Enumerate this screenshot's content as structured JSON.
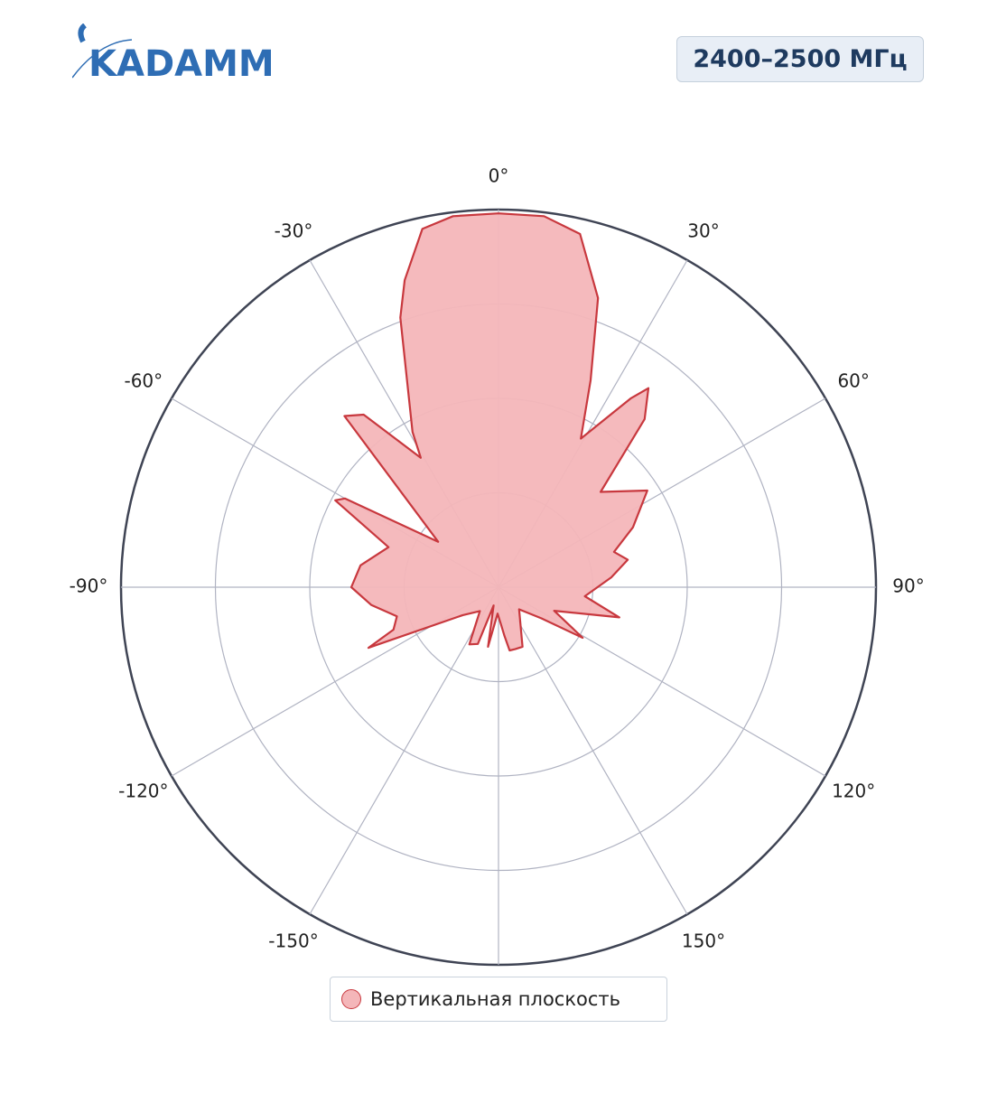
{
  "header": {
    "logo": "KADAMM",
    "badge": "2400–2500 МГц"
  },
  "chart_data": {
    "type": "polar",
    "rlim": [
      0,
      1
    ],
    "rticks": [
      0.25,
      0.5,
      0.75,
      1
    ],
    "thetaticks": [
      {
        "value": 0,
        "label": "0°"
      },
      {
        "value": 30,
        "label": "30°"
      },
      {
        "value": 60,
        "label": "60°"
      },
      {
        "value": 90,
        "label": "90°"
      },
      {
        "value": 120,
        "label": "120°"
      },
      {
        "value": 150,
        "label": "150°"
      },
      {
        "value": 180,
        "label": null
      },
      {
        "value": -150,
        "label": "-150°"
      },
      {
        "value": -120,
        "label": "-120°"
      },
      {
        "value": -90,
        "label": "-90°"
      },
      {
        "value": -60,
        "label": "-60°"
      },
      {
        "value": -30,
        "label": "-30°"
      }
    ],
    "series": [
      {
        "name": "Вертикальная плоскость",
        "color": "#c8383e",
        "fill": "#f4b6b9",
        "theta": [
          0,
          7,
          13,
          19,
          24,
          29,
          35,
          37,
          41,
          47,
          57,
          66,
          73,
          78,
          85,
          96,
          104,
          113,
          121,
          126,
          137,
          158,
          165,
          170,
          173,
          176,
          182,
          190,
          195,
          200,
          207,
          218,
          232,
          245,
          248,
          254,
          262,
          270,
          279,
          290,
          298,
          300,
          307,
          318,
          322,
          329,
          331,
          340,
          343,
          348,
          353
        ],
        "r": [
          0.99,
          0.99,
          0.96,
          0.81,
          0.6,
          0.45,
          0.61,
          0.66,
          0.59,
          0.37,
          0.47,
          0.39,
          0.32,
          0.35,
          0.3,
          0.23,
          0.33,
          0.16,
          0.26,
          0.14,
          0.08,
          0.17,
          0.17,
          0.17,
          0.13,
          0.1,
          0.07,
          0.16,
          0.05,
          0.16,
          0.17,
          0.08,
          0.12,
          0.38,
          0.3,
          0.28,
          0.34,
          0.39,
          0.37,
          0.31,
          0.49,
          0.47,
          0.2,
          0.61,
          0.58,
          0.4,
          0.47,
          0.76,
          0.85,
          0.97,
          0.99
        ]
      }
    ]
  }
}
